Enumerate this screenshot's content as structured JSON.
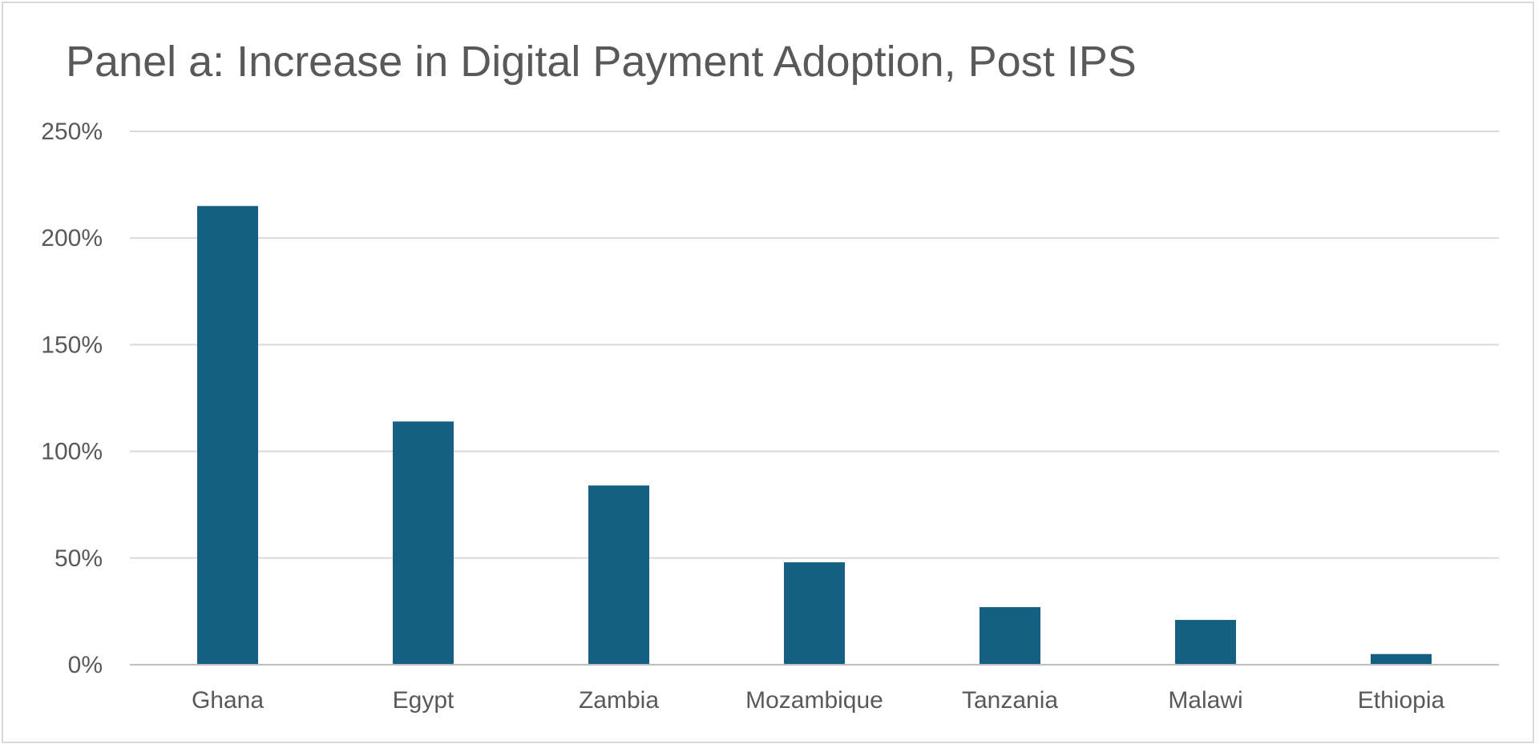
{
  "chart_data": {
    "type": "bar",
    "title": "Panel a: Increase in Digital Payment Adoption, Post IPS",
    "xlabel": "",
    "ylabel": "",
    "categories": [
      "Ghana",
      "Egypt",
      "Zambia",
      "Mozambique",
      "Tanzania",
      "Malawi",
      "Ethiopia"
    ],
    "values": [
      2.15,
      1.14,
      0.84,
      0.48,
      0.27,
      0.21,
      0.05
    ],
    "value_format": "percent",
    "ylim": [
      0,
      2.5
    ],
    "yticks": [
      0,
      0.5,
      1.0,
      1.5,
      2.0,
      2.5
    ],
    "ytick_labels": [
      "0%",
      "50%",
      "100%",
      "150%",
      "200%",
      "250%"
    ],
    "grid": true,
    "legend": "none",
    "bar_color": "#156082",
    "grid_color": "#d9d9d9",
    "axis_color": "#bfbfbf"
  }
}
